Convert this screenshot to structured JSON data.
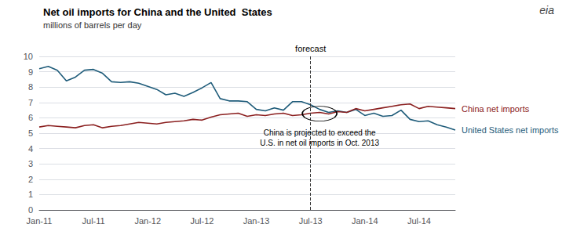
{
  "chart_data": {
    "type": "line",
    "title": "Net oil imports for China and the United  States",
    "subtitle": "millions of barrels per day",
    "categories": [
      "Jan-11",
      null,
      null,
      null,
      null,
      null,
      "Jul-11",
      null,
      null,
      null,
      null,
      null,
      "Jan-12",
      null,
      null,
      null,
      null,
      null,
      "Jul-12",
      null,
      null,
      null,
      null,
      null,
      "Jan-13",
      null,
      null,
      null,
      null,
      null,
      "Jul-13",
      null,
      null,
      null,
      null,
      null,
      "Jan-14",
      null,
      null,
      null,
      null,
      null,
      "Jul-14",
      null,
      null,
      null,
      null
    ],
    "series": [
      {
        "name": "United States net imports",
        "color": "#1f5c7a",
        "values": [
          9.2,
          9.35,
          9.1,
          8.4,
          8.65,
          9.1,
          9.15,
          8.9,
          8.35,
          8.3,
          8.35,
          8.25,
          8.05,
          7.85,
          7.5,
          7.6,
          7.4,
          7.65,
          7.95,
          8.3,
          7.25,
          7.1,
          7.1,
          7.05,
          6.55,
          6.45,
          6.65,
          6.5,
          7.05,
          7.05,
          6.85,
          6.55,
          6.35,
          6.45,
          6.35,
          6.55,
          6.15,
          6.3,
          6.1,
          6.15,
          6.5,
          5.9,
          5.75,
          5.8,
          5.55,
          5.4,
          5.2
        ]
      },
      {
        "name": "China net imports",
        "color": "#8b2020",
        "values": [
          5.4,
          5.5,
          5.45,
          5.4,
          5.35,
          5.5,
          5.55,
          5.35,
          5.45,
          5.5,
          5.6,
          5.7,
          5.65,
          5.6,
          5.7,
          5.75,
          5.8,
          5.9,
          5.85,
          6.05,
          6.2,
          6.25,
          6.3,
          6.1,
          6.2,
          6.15,
          6.25,
          6.3,
          6.15,
          6.2,
          6.3,
          6.35,
          6.25,
          6.4,
          6.35,
          6.6,
          6.45,
          6.55,
          6.65,
          6.75,
          6.85,
          6.9,
          6.6,
          6.75,
          6.7,
          6.65,
          6.6
        ]
      }
    ],
    "ylim": [
      0,
      10
    ],
    "yticks": [
      0,
      1,
      2,
      3,
      4,
      5,
      6,
      7,
      8,
      9,
      10
    ],
    "grid": true,
    "annotations": [
      {
        "text": "forecast",
        "x": 30
      },
      {
        "text": "China is projected to exceed the\nU.S. in net oil imports in Oct. 2013",
        "x": 31,
        "y": 6.27
      },
      {
        "text": "eia"
      }
    ]
  }
}
